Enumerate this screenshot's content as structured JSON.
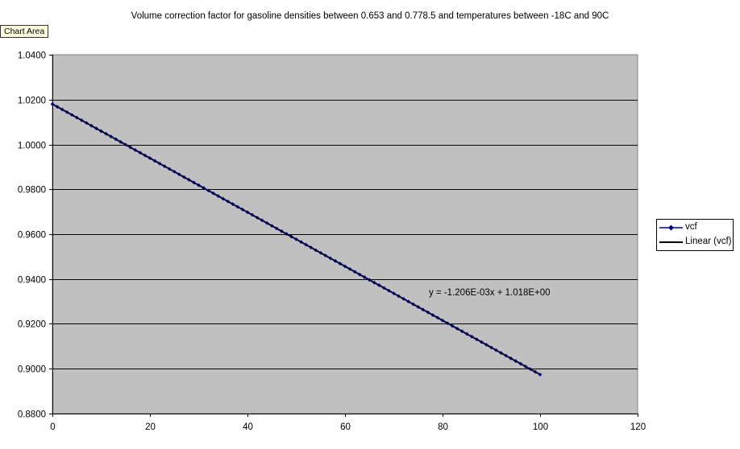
{
  "ui": {
    "chart_area_tooltip": "Chart Area"
  },
  "chart_data": {
    "type": "line",
    "title": "Volume correction factor for gasoline densities between 0.653 and 0.778.5 and temperatures between -18C and 90C",
    "xlabel": "",
    "ylabel": "",
    "xlim": [
      0,
      120
    ],
    "ylim": [
      0.88,
      1.04
    ],
    "x_ticks": [
      0,
      20,
      40,
      60,
      80,
      100,
      120
    ],
    "y_ticks": [
      0.88,
      0.9,
      0.92,
      0.94,
      0.96,
      0.98,
      1.0,
      1.02,
      1.04
    ],
    "x_tick_labels": [
      "0",
      "20",
      "40",
      "60",
      "80",
      "100",
      "120"
    ],
    "y_tick_labels": [
      "0.8800",
      "0.9000",
      "0.9200",
      "0.9400",
      "0.9600",
      "0.9800",
      "1.0000",
      "1.0200",
      "1.0400"
    ],
    "grid": "horizontal",
    "plot_background": "#c0c0c0",
    "legend_position": "right",
    "series": [
      {
        "name": "vcf",
        "marker": "diamond",
        "color": "#000080",
        "x_range": [
          0,
          100
        ],
        "x_step": 1,
        "slope": -0.001206,
        "intercept": 1.018
      }
    ],
    "trendline": {
      "name": "Linear (vcf)",
      "color": "#000000",
      "slope": -0.001206,
      "intercept": 1.018,
      "x_range": [
        0,
        100
      ],
      "equation": "y = -1.206E-03x + 1.018E+00"
    }
  }
}
